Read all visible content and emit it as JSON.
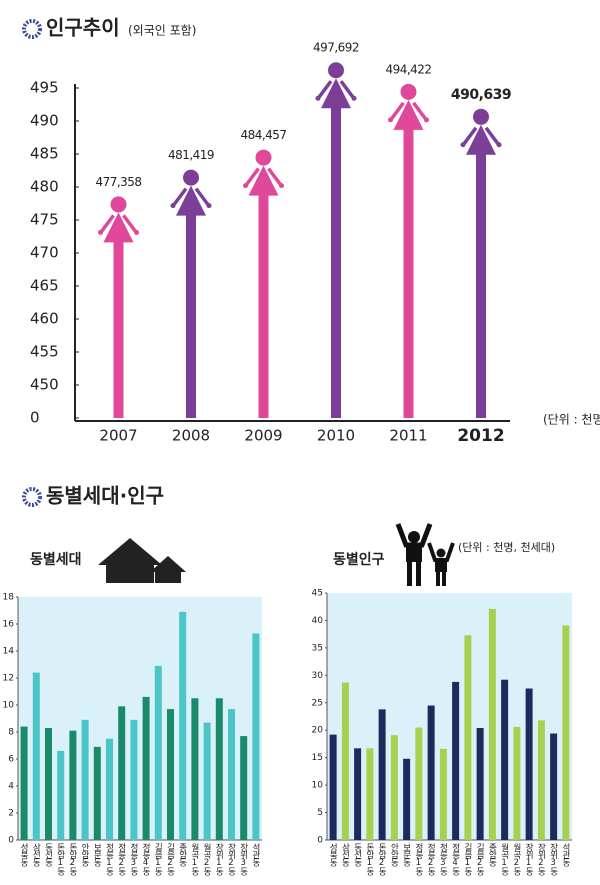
{
  "section_title": "동별세대·인구",
  "chart_data": [
    {
      "type": "figure-bar",
      "title": "인구추이",
      "subtitle": "(외국인 포함)",
      "unit_label": "(단위 : 천명)",
      "categories": [
        "2007",
        "2008",
        "2009",
        "2010",
        "2011",
        "2012"
      ],
      "values": [
        477.358,
        481.419,
        484.457,
        497.692,
        494.422,
        490.639
      ],
      "value_labels": [
        "477,358",
        "481,419",
        "484,457",
        "497,692",
        "494,422",
        "490,639"
      ],
      "colors": [
        "#e0489a",
        "#7b3f98",
        "#e0489a",
        "#7b3f98",
        "#e0489a",
        "#7b3f98"
      ],
      "ylim": [
        0,
        495
      ],
      "yticks": [
        0,
        450,
        455,
        460,
        465,
        470,
        475,
        480,
        485,
        490,
        495
      ]
    },
    {
      "type": "bar",
      "title": "동별세대",
      "categories": [
        "성북동",
        "삼선동",
        "동선동",
        "돈암1동",
        "돈암2동",
        "안암동",
        "보문동",
        "정릉1동",
        "정릉2동",
        "정릉3동",
        "정릉4동",
        "길음1동",
        "길음2동",
        "종암동",
        "월곡1동",
        "월곡2동",
        "장위1동",
        "장위2동",
        "장위3동",
        "석관동"
      ],
      "values": [
        8.4,
        12.4,
        8.3,
        6.6,
        8.1,
        8.9,
        6.9,
        7.5,
        9.9,
        8.9,
        10.6,
        12.9,
        9.7,
        16.9,
        10.5,
        8.7,
        10.5,
        9.7,
        7.7,
        15.3
      ],
      "colors": [
        "#1a8a6a",
        "#4cc5c8"
      ],
      "ylim": [
        0,
        18
      ],
      "yticks": [
        0,
        2,
        4,
        6,
        8,
        10,
        12,
        14,
        16,
        18
      ]
    },
    {
      "type": "bar",
      "title": "동별인구",
      "unit_label": "(단위 : 천명, 천세대)",
      "categories": [
        "성북동",
        "삼선동",
        "동선동",
        "돈암1동",
        "돈암2동",
        "안암동",
        "보문동",
        "정릉1동",
        "정릉2동",
        "정릉3동",
        "정릉4동",
        "길음1동",
        "길음2동",
        "종암동",
        "월곡1동",
        "월곡2동",
        "장위1동",
        "장위2동",
        "장위3동",
        "석관동"
      ],
      "values": [
        19.2,
        28.7,
        16.7,
        16.7,
        23.8,
        19.1,
        14.8,
        20.5,
        24.5,
        16.6,
        28.8,
        37.3,
        20.4,
        42.1,
        29.2,
        20.6,
        27.6,
        21.8,
        19.4,
        39.1
      ],
      "colors": [
        "#1c2a5e",
        "#a8d050"
      ],
      "ylim": [
        0,
        45
      ],
      "yticks": [
        0,
        5,
        10,
        15,
        20,
        25,
        30,
        35,
        40,
        45
      ]
    }
  ]
}
